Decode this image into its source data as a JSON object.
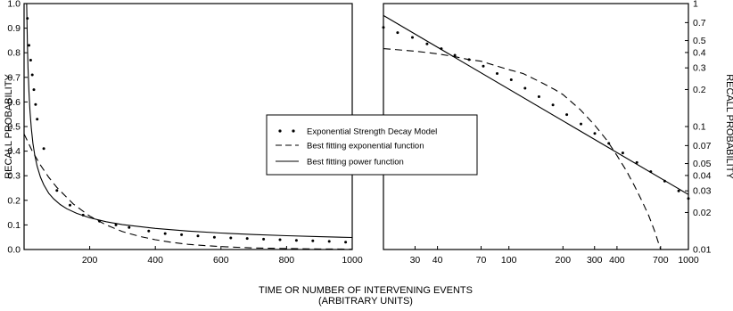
{
  "chart_data": [
    {
      "type": "line",
      "scale": "linear-linear",
      "xlim": [
        0,
        1000
      ],
      "ylim": [
        0,
        1.0
      ],
      "xticks": [
        "200",
        "400",
        "600",
        "800",
        "1000"
      ],
      "yticks": [
        "0.0",
        "0.1",
        "0.2",
        "0.3",
        "0.4",
        "0.5",
        "0.6",
        "0.7",
        "0.8",
        "0.9",
        "1.0"
      ],
      "ylabel": "RECALL PROBABILITY",
      "series": [
        {
          "name": "Exponential Strength Decay Model",
          "style": "dotted",
          "x": [
            10,
            15,
            20,
            25,
            30,
            35,
            40,
            60,
            100,
            140,
            180,
            230,
            280,
            320,
            380,
            430,
            480,
            530,
            580,
            630,
            680,
            730,
            780,
            830,
            880,
            930,
            980
          ],
          "y": [
            0.94,
            0.83,
            0.77,
            0.71,
            0.65,
            0.59,
            0.53,
            0.41,
            0.24,
            0.18,
            0.14,
            0.115,
            0.1,
            0.09,
            0.075,
            0.065,
            0.06,
            0.055,
            0.05,
            0.047,
            0.045,
            0.042,
            0.04,
            0.037,
            0.035,
            0.033,
            0.03
          ]
        },
        {
          "name": "Best fitting exponential function",
          "style": "dashed",
          "x": [
            0,
            25,
            50,
            75,
            100,
            150,
            200,
            250,
            300,
            350,
            400,
            450,
            500,
            550,
            600,
            650,
            700,
            750,
            800,
            850,
            900,
            950,
            1000
          ],
          "y": [
            0.47,
            0.4,
            0.343,
            0.294,
            0.252,
            0.185,
            0.136,
            0.1,
            0.073,
            0.054,
            0.04,
            0.029,
            0.021,
            0.016,
            0.012,
            0.009,
            0.006,
            0.005,
            0.004,
            0.003,
            0.002,
            0.002,
            0.001
          ]
        },
        {
          "name": "Best fitting power function",
          "style": "solid",
          "x": [
            8,
            10,
            12,
            15,
            18,
            22,
            27,
            33,
            40,
            50,
            60,
            75,
            90,
            110,
            130,
            160,
            200,
            250,
            300,
            400,
            500,
            600,
            700,
            800,
            900,
            1000
          ],
          "y": [
            1.0,
            0.84,
            0.74,
            0.64,
            0.565,
            0.494,
            0.432,
            0.381,
            0.338,
            0.294,
            0.263,
            0.229,
            0.206,
            0.183,
            0.166,
            0.147,
            0.129,
            0.113,
            0.101,
            0.086,
            0.075,
            0.067,
            0.061,
            0.056,
            0.052,
            0.049
          ]
        }
      ]
    },
    {
      "type": "line",
      "scale": "log-log",
      "xlim": [
        20,
        1000
      ],
      "ylim": [
        0.01,
        1
      ],
      "xticks": [
        "30",
        "40",
        "70",
        "100",
        "200",
        "300",
        "400",
        "700",
        "1000"
      ],
      "yticks": [
        "1",
        "0.7",
        "0.5",
        "0.4",
        "0.3",
        "0.2",
        "0.1",
        "0.07",
        "0.05",
        "0.04",
        "0.03",
        "0.02",
        "0.01"
      ],
      "ylabel": "RECALL PROBABILITY",
      "series": [
        {
          "name": "Exponential Strength Decay Model",
          "style": "dotted",
          "x": [
            20,
            24,
            29,
            35,
            42,
            50,
            60,
            72,
            86,
            103,
            123,
            147,
            176,
            210,
            252,
            301,
            360,
            431,
            516,
            617,
            738,
            883,
            1000
          ],
          "y": [
            0.64,
            0.58,
            0.53,
            0.47,
            0.43,
            0.38,
            0.35,
            0.31,
            0.27,
            0.24,
            0.205,
            0.175,
            0.15,
            0.125,
            0.105,
            0.088,
            0.073,
            0.061,
            0.051,
            0.043,
            0.036,
            0.03,
            0.026
          ]
        },
        {
          "name": "Best fitting exponential function",
          "style": "dashed",
          "x": [
            20,
            30,
            40,
            50,
            60,
            70,
            80,
            100,
            120,
            150,
            180,
            200,
            250,
            300,
            350,
            400,
            450,
            500,
            550,
            600,
            650,
            700
          ],
          "y": [
            0.43,
            0.41,
            0.39,
            0.37,
            0.35,
            0.34,
            0.32,
            0.29,
            0.27,
            0.23,
            0.2,
            0.182,
            0.137,
            0.103,
            0.078,
            0.058,
            0.044,
            0.033,
            0.025,
            0.019,
            0.014,
            0.01
          ]
        },
        {
          "name": "Best fitting power function",
          "style": "solid",
          "x": [
            20,
            1000
          ],
          "y": [
            0.8,
            0.028
          ]
        }
      ]
    }
  ],
  "legend": {
    "items": [
      {
        "label": "Exponential Strength Decay Model",
        "style": "dotted"
      },
      {
        "label": "Best fitting exponential function",
        "style": "dashed"
      },
      {
        "label": "Best fitting power function",
        "style": "solid"
      }
    ]
  },
  "xlabel_line1": "TIME  OR  NUMBER OF INTERVENING EVENTS",
  "xlabel_line2": "(ARBITRARY UNITS)"
}
